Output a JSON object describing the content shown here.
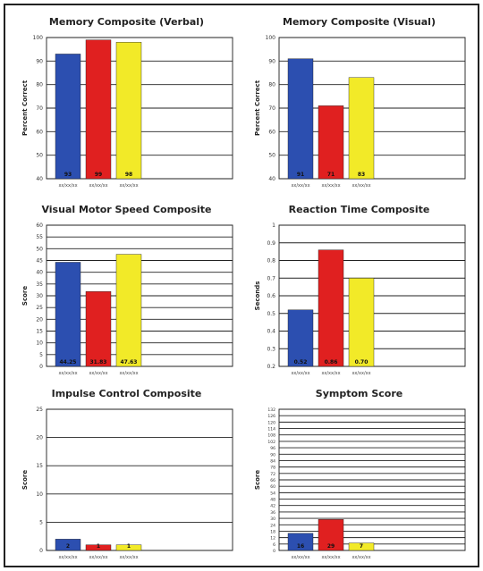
{
  "chart_data": [
    {
      "type": "bar",
      "title": "Memory Composite (Verbal)",
      "ylabel": "Percent Correct",
      "ylim": [
        40,
        100
      ],
      "yticks": [
        40,
        50,
        60,
        70,
        80,
        90,
        100
      ],
      "categories": [
        "xx/xx/xx",
        "xx/xx/xx",
        "xx/xx/xx"
      ],
      "values": [
        93,
        99,
        98
      ],
      "value_labels": [
        "93",
        "99",
        "98"
      ],
      "colors": [
        "#2c4fb0",
        "#e02020",
        "#f2ea28"
      ]
    },
    {
      "type": "bar",
      "title": "Memory Composite (Visual)",
      "ylabel": "Percent Correct",
      "ylim": [
        40,
        100
      ],
      "yticks": [
        40,
        50,
        60,
        70,
        80,
        90,
        100
      ],
      "categories": [
        "xx/xx/xx",
        "xx/xx/xx",
        "xx/xx/xx"
      ],
      "values": [
        91,
        71,
        83
      ],
      "value_labels": [
        "91",
        "71",
        "83"
      ],
      "colors": [
        "#2c4fb0",
        "#e02020",
        "#f2ea28"
      ]
    },
    {
      "type": "bar",
      "title": "Visual Motor Speed Composite",
      "ylabel": "Score",
      "ylim": [
        0,
        60
      ],
      "yticks": [
        0,
        5,
        10,
        15,
        20,
        25,
        30,
        35,
        40,
        45,
        50,
        55,
        60
      ],
      "categories": [
        "xx/xx/xx",
        "xx/xx/xx",
        "xx/xx/xx"
      ],
      "values": [
        44.25,
        31.83,
        47.63
      ],
      "value_labels": [
        "44.25",
        "31.83",
        "47.63"
      ],
      "colors": [
        "#2c4fb0",
        "#e02020",
        "#f2ea28"
      ]
    },
    {
      "type": "bar",
      "title": "Reaction Time Composite",
      "ylabel": "Seconds",
      "ylim": [
        0.2,
        1.0
      ],
      "yticks": [
        0.2,
        0.3,
        0.4,
        0.5,
        0.6,
        0.7,
        0.8,
        0.9,
        1.0
      ],
      "categories": [
        "xx/xx/xx",
        "xx/xx/xx",
        "xx/xx/xx"
      ],
      "values": [
        0.52,
        0.86,
        0.7
      ],
      "value_labels": [
        "0.52",
        "0.86",
        "0.70"
      ],
      "colors": [
        "#2c4fb0",
        "#e02020",
        "#f2ea28"
      ]
    },
    {
      "type": "bar",
      "title": "Impulse Control Composite",
      "ylabel": "Score",
      "ylim": [
        0,
        25
      ],
      "yticks": [
        0,
        5,
        10,
        15,
        20,
        25
      ],
      "categories": [
        "xx/xx/xx",
        "xx/xx/xx",
        "xx/xx/xx"
      ],
      "values": [
        2,
        1,
        1
      ],
      "value_labels": [
        "2",
        "1",
        "1"
      ],
      "colors": [
        "#2c4fb0",
        "#e02020",
        "#f2ea28"
      ]
    },
    {
      "type": "bar",
      "title": "Symptom Score",
      "ylabel": "Score",
      "ylim": [
        0,
        132
      ],
      "yticks": [
        0,
        6,
        12,
        18,
        24,
        30,
        36,
        42,
        48,
        54,
        60,
        66,
        72,
        78,
        84,
        90,
        96,
        102,
        108,
        114,
        120,
        126,
        132
      ],
      "categories": [
        "xx/xx/xx",
        "xx/xx/xx",
        "xx/xx/xx"
      ],
      "values": [
        16,
        29,
        7
      ],
      "value_labels": [
        "16",
        "29",
        "7"
      ],
      "colors": [
        "#2c4fb0",
        "#e02020",
        "#f2ea28"
      ]
    }
  ]
}
